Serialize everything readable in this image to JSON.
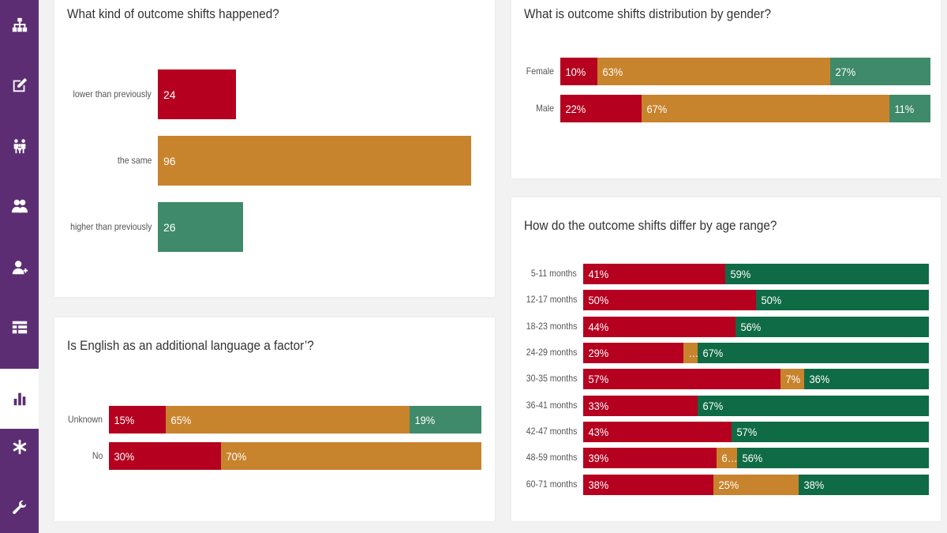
{
  "colors": {
    "sidebar_bg": "#5c2d73",
    "lower": "#b5001f",
    "same": "#c8832d",
    "higher": "#3f8a6a",
    "higher_dark": "#0f6b45"
  },
  "sidebar": {
    "items": [
      {
        "icon": "sitemap-icon"
      },
      {
        "icon": "edit-icon"
      },
      {
        "icon": "family-icon"
      },
      {
        "icon": "users-icon"
      },
      {
        "icon": "add-user-icon"
      },
      {
        "icon": "table-icon"
      },
      {
        "icon": "bar-chart-icon",
        "active": true
      },
      {
        "icon": "asterisk-icon"
      },
      {
        "icon": "wrench-icon"
      }
    ]
  },
  "panels": {
    "outcome": {
      "title": "What kind of outcome shifts happened?"
    },
    "gender": {
      "title": "What is outcome shifts distribution by gender?"
    },
    "eal": {
      "title": "Is English as an additional language a factor’?"
    },
    "age": {
      "title": "How do the outcome shifts differ by age range?"
    }
  },
  "chart_data": [
    {
      "type": "bar",
      "title": "What kind of outcome shifts happened?",
      "orientation": "horizontal",
      "categories": [
        "lower than previously",
        "the same",
        "higher than previously"
      ],
      "values": [
        24,
        96,
        26
      ],
      "value_labels": [
        "24",
        "96",
        "26"
      ],
      "colors": [
        "#b5001f",
        "#c8832d",
        "#3f8a6a"
      ]
    },
    {
      "type": "bar",
      "stacked": "percent",
      "title": "What is outcome shifts distribution by gender?",
      "categories": [
        "Female",
        "Male"
      ],
      "series": [
        {
          "values": [
            10,
            22
          ],
          "labels": [
            "10%",
            "22%"
          ],
          "color": "#b5001f"
        },
        {
          "values": [
            63,
            67
          ],
          "labels": [
            "63%",
            "67%"
          ],
          "color": "#c8832d"
        },
        {
          "values": [
            27,
            11
          ],
          "labels": [
            "27%",
            "11%"
          ],
          "color": "#3f8a6a"
        }
      ]
    },
    {
      "type": "bar",
      "stacked": "percent",
      "title": "Is English as an additional language a factor’?",
      "categories": [
        "Unknown",
        "No"
      ],
      "series": [
        {
          "values": [
            15,
            30
          ],
          "labels": [
            "15%",
            "30%"
          ],
          "color": "#b5001f"
        },
        {
          "values": [
            65,
            70
          ],
          "labels": [
            "65%",
            "70%"
          ],
          "color": "#c8832d"
        },
        {
          "values": [
            19,
            0
          ],
          "labels": [
            "19%",
            ""
          ],
          "color": "#3f8a6a"
        }
      ]
    },
    {
      "type": "bar",
      "stacked": "percent",
      "title": "How do the outcome shifts differ by age range?",
      "categories": [
        "5-11 months",
        "12-17 months",
        "18-23 months",
        "24-29 months",
        "30-35 months",
        "36-41 months",
        "42-47 months",
        "48-59 months",
        "60-71 months"
      ],
      "series": [
        {
          "values": [
            41,
            50,
            44,
            29,
            57,
            33,
            43,
            39,
            38
          ],
          "labels": [
            "41%",
            "50%",
            "44%",
            "29%",
            "57%",
            "33%",
            "43%",
            "39%",
            "38%"
          ],
          "color": "#b5001f"
        },
        {
          "values": [
            0,
            0,
            0,
            4,
            7,
            0,
            0,
            6,
            25
          ],
          "labels": [
            "",
            "",
            "",
            "…",
            "7%",
            "",
            "",
            "6…",
            "25%"
          ],
          "color": "#c8832d"
        },
        {
          "values": [
            59,
            50,
            56,
            67,
            36,
            67,
            57,
            56,
            38
          ],
          "labels": [
            "59%",
            "50%",
            "56%",
            "67%",
            "36%",
            "67%",
            "57%",
            "56%",
            "38%"
          ],
          "color": "#0f6b45"
        }
      ]
    }
  ]
}
